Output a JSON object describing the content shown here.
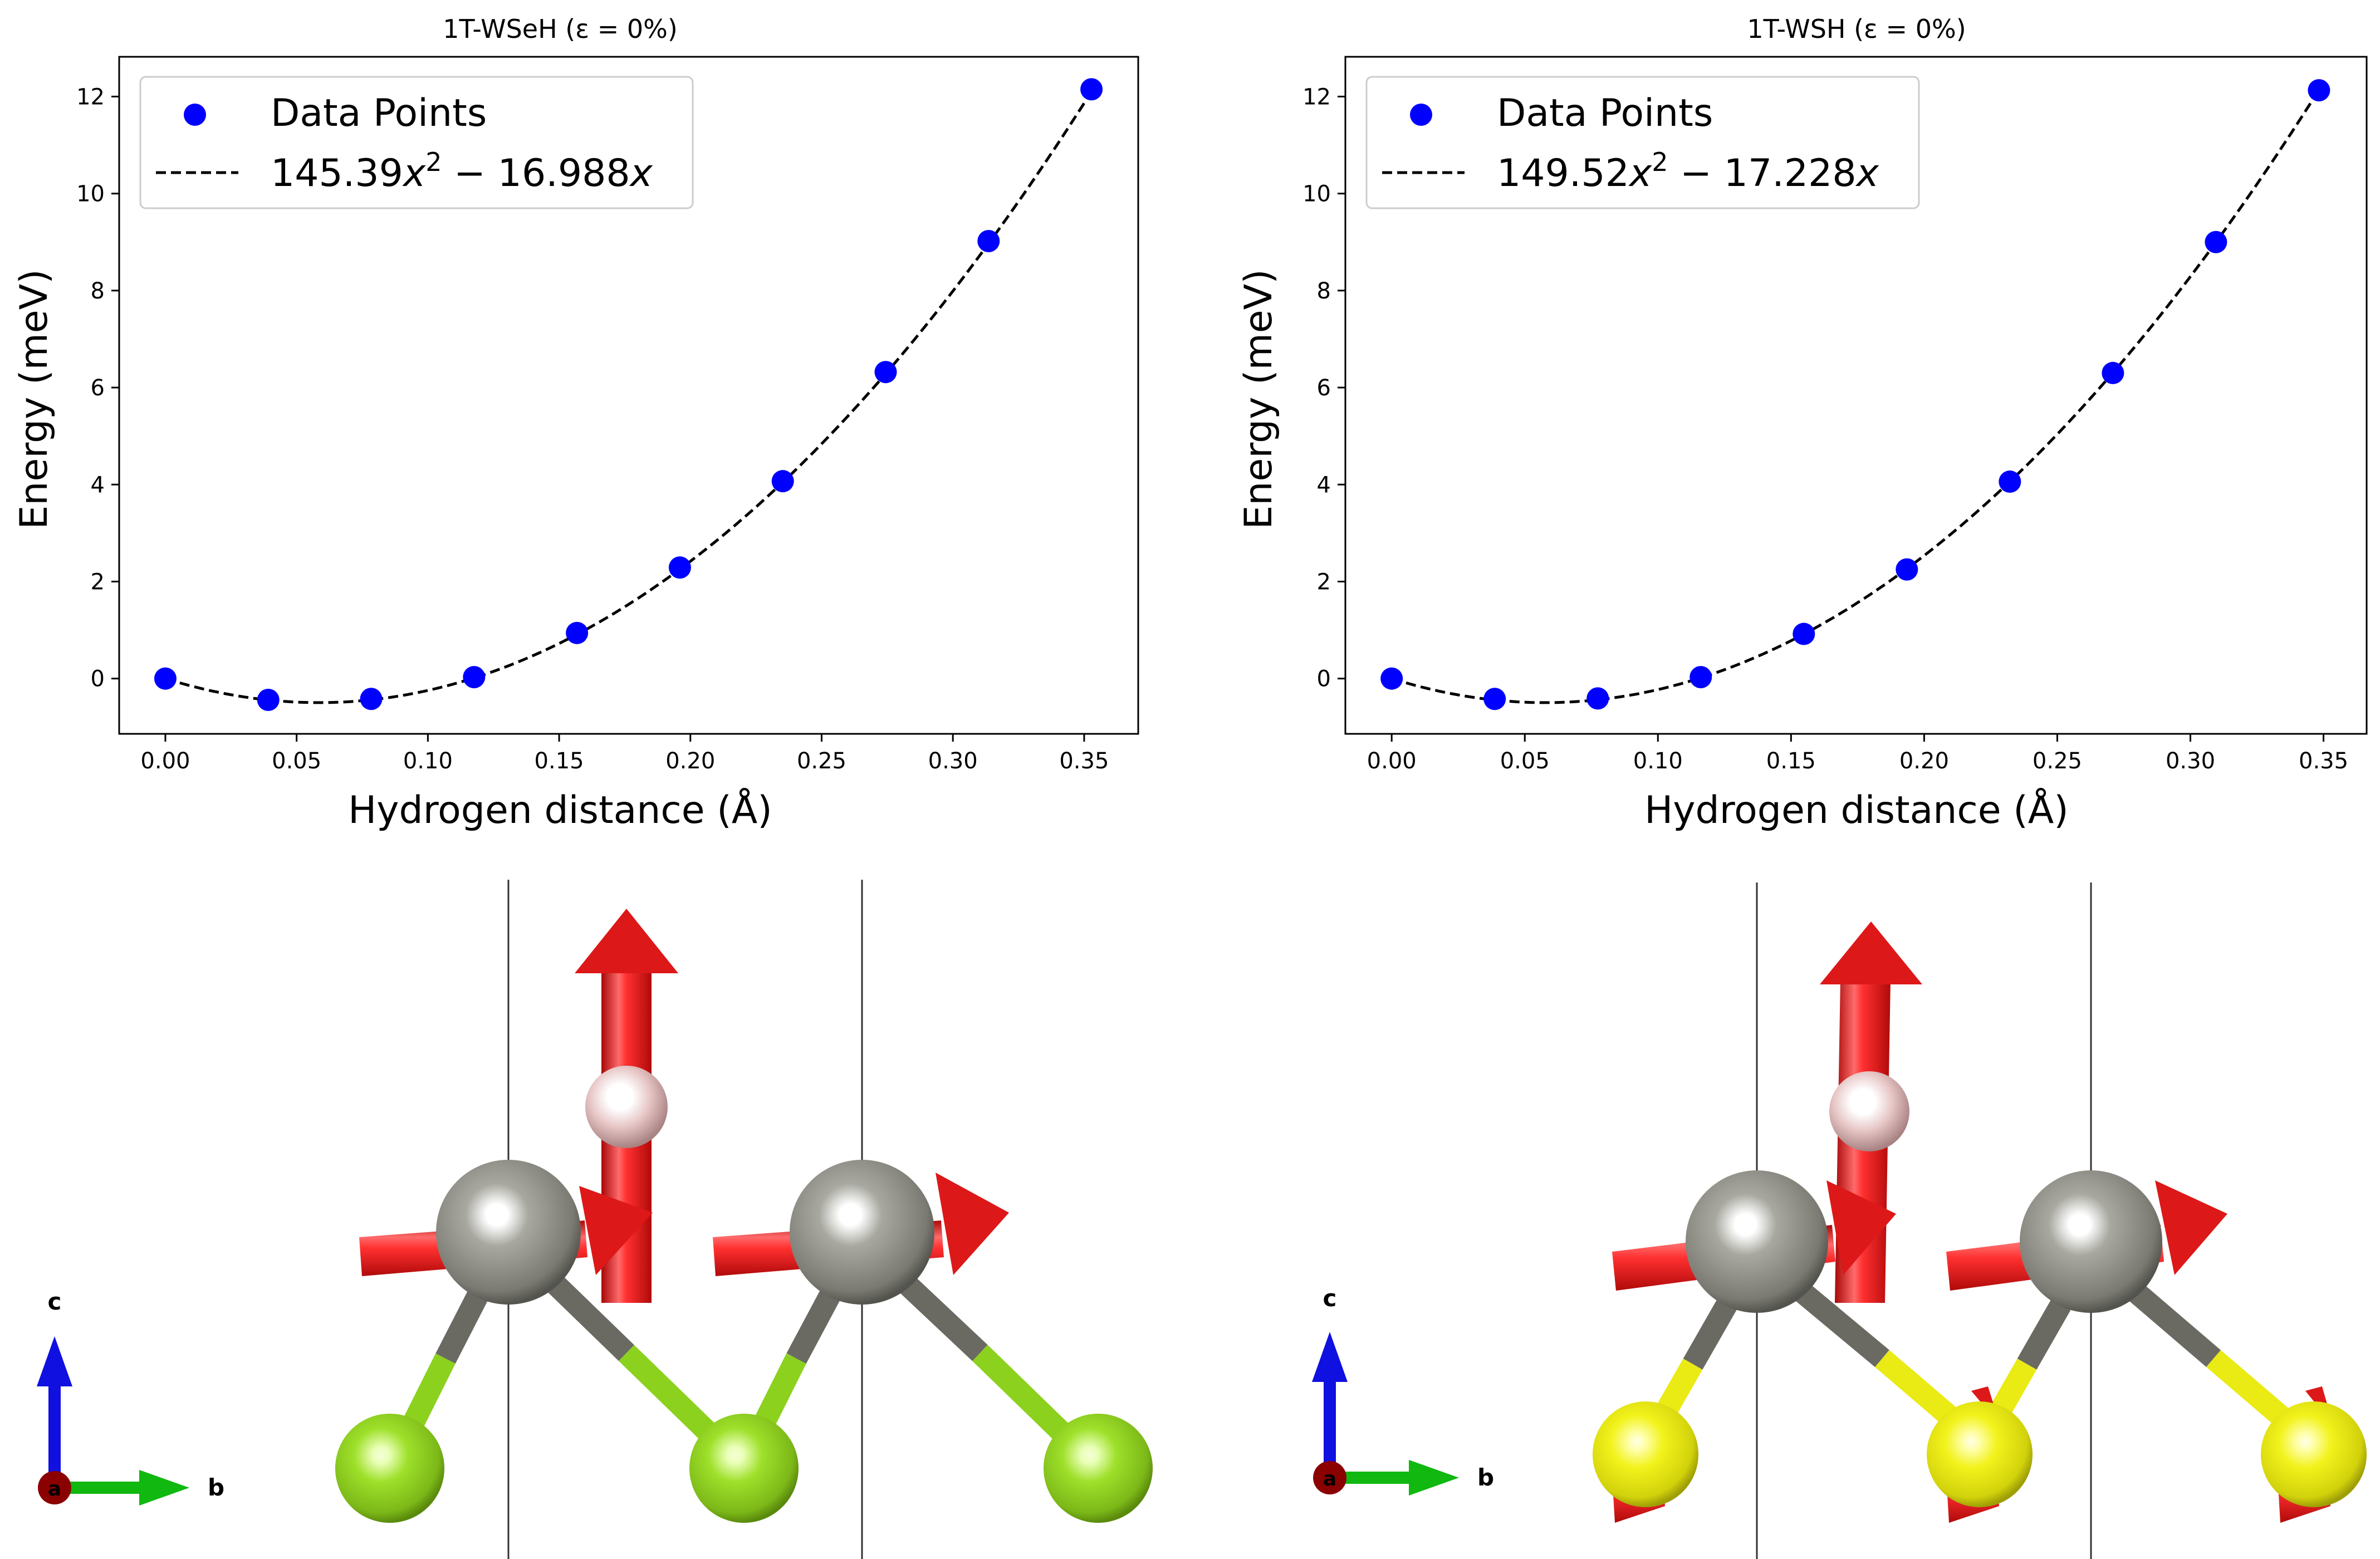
{
  "figure": {
    "colors": {
      "points": "#0000ff",
      "fit_line": "#000000",
      "axes": "#000000",
      "background": "#ffffff",
      "arrow": "#dd1111",
      "tungsten": "#808078",
      "selenium": "#8cd11e",
      "sulfur": "#eaea14",
      "hydrogen": "#e8c8c8",
      "axis_c": "#1010e0",
      "axis_b": "#10b810",
      "axis_a": "#8b0000"
    }
  },
  "chart_data": [
    {
      "type": "scatter",
      "title": "1T-WSeH (ε = 0%)",
      "xlabel": "Hydrogen distance (Å)",
      "ylabel": "Energy (meV)",
      "xlim": [
        -0.0176,
        0.3706
      ],
      "ylim": [
        -1.14,
        12.82
      ],
      "xticks": [
        0.0,
        0.05,
        0.1,
        0.15,
        0.2,
        0.25,
        0.3,
        0.35
      ],
      "xtick_labels": [
        "0.00",
        "0.05",
        "0.10",
        "0.15",
        "0.20",
        "0.25",
        "0.30",
        "0.35"
      ],
      "yticks": [
        0,
        2,
        4,
        6,
        8,
        10,
        12
      ],
      "ytick_labels": [
        "0",
        "2",
        "4",
        "6",
        "8",
        "10",
        "12"
      ],
      "series": [
        {
          "name": "Data Points",
          "kind": "scatter",
          "x": [
            0.0,
            0.0392,
            0.0784,
            0.1176,
            0.1568,
            0.196,
            0.2352,
            0.2744,
            0.3136,
            0.3528
          ],
          "y": [
            0.0,
            -0.44,
            -0.42,
            0.03,
            0.94,
            2.29,
            4.07,
            6.32,
            9.02,
            12.15
          ]
        },
        {
          "name": "fit",
          "kind": "line",
          "style": "dashed",
          "coefficients": {
            "a": 145.39,
            "b": -16.988
          }
        }
      ],
      "legend": {
        "position": "top-left",
        "entries": [
          {
            "label": "Data Points",
            "type": "marker"
          },
          {
            "label_parts": [
              "145.39",
              "x",
              "2",
              " − 16.988",
              "x"
            ],
            "type": "dashed-line"
          }
        ]
      }
    },
    {
      "type": "scatter",
      "title": "1T-WSH (ε = 0%)",
      "xlabel": "Hydrogen distance (Å)",
      "ylabel": "Energy (meV)",
      "xlim": [
        -0.0174,
        0.3662
      ],
      "ylim": [
        -1.14,
        12.82
      ],
      "xticks": [
        0.0,
        0.05,
        0.1,
        0.15,
        0.2,
        0.25,
        0.3,
        0.35
      ],
      "xtick_labels": [
        "0.00",
        "0.05",
        "0.10",
        "0.15",
        "0.20",
        "0.25",
        "0.30",
        "0.35"
      ],
      "yticks": [
        0,
        2,
        4,
        6,
        8,
        10,
        12
      ],
      "ytick_labels": [
        "0",
        "2",
        "4",
        "6",
        "8",
        "10",
        "12"
      ],
      "series": [
        {
          "name": "Data Points",
          "kind": "scatter",
          "x": [
            0.0,
            0.0387,
            0.0774,
            0.1161,
            0.1548,
            0.1935,
            0.2322,
            0.2709,
            0.3096,
            0.3483
          ],
          "y": [
            0.0,
            -0.42,
            -0.41,
            0.03,
            0.92,
            2.25,
            4.06,
            6.3,
            9.0,
            12.13
          ]
        },
        {
          "name": "fit",
          "kind": "line",
          "style": "dashed",
          "coefficients": {
            "a": 149.52,
            "b": -17.228
          }
        }
      ],
      "legend": {
        "position": "top-left",
        "entries": [
          {
            "label": "Data Points",
            "type": "marker"
          },
          {
            "label_parts": [
              "149.52",
              "x",
              "2",
              " − 17.228",
              "x"
            ],
            "type": "dashed-line"
          }
        ]
      }
    }
  ],
  "structures": [
    {
      "name": "1T-WSeH structure",
      "chalcogen": "Se",
      "axes_labels": {
        "c": "c",
        "b": "b",
        "a": "a"
      }
    },
    {
      "name": "1T-WSH structure",
      "chalcogen": "S",
      "axes_labels": {
        "c": "c",
        "b": "b",
        "a": "a"
      }
    }
  ]
}
